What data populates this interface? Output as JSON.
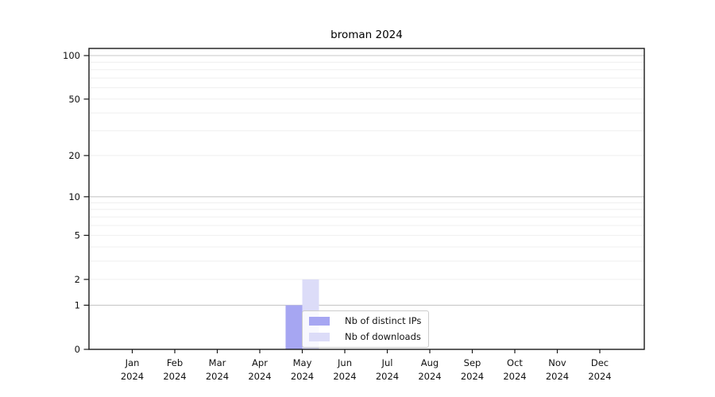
{
  "title": "broman 2024",
  "chart_data": {
    "type": "bar",
    "title": "broman 2024",
    "categories": [
      "Jan",
      "Feb",
      "Mar",
      "Apr",
      "May",
      "Jun",
      "Jul",
      "Aug",
      "Sep",
      "Oct",
      "Nov",
      "Dec"
    ],
    "category_year": "2024",
    "series": [
      {
        "name": "Nb of distinct IPs",
        "color": "#a6a6f2",
        "values": [
          0,
          0,
          0,
          0,
          1,
          0,
          0,
          0,
          0,
          0,
          0,
          0
        ]
      },
      {
        "name": "Nb of downloads",
        "color": "#dcdcf8",
        "values": [
          0,
          0,
          0,
          0,
          2,
          0,
          0,
          0,
          0,
          0,
          0,
          0
        ]
      }
    ],
    "y_axis": {
      "scale": "log1p",
      "ticks": [
        0,
        1,
        2,
        5,
        10,
        20,
        50,
        100
      ],
      "major_grid": [
        1,
        10,
        100
      ],
      "minor_grid": [
        2,
        3,
        4,
        5,
        6,
        7,
        8,
        9,
        20,
        30,
        40,
        50,
        60,
        70,
        80,
        90
      ],
      "max": 100
    },
    "ylim": [
      0,
      110
    ],
    "grid": true,
    "legend_position": "inside-bottom-center",
    "xlabel": "",
    "ylabel": ""
  },
  "colors": {
    "major_grid": "#c9c9c9",
    "minor_grid": "#efefef",
    "spine": "#1a1a1a",
    "text": "#111111",
    "legend_border": "#cccccc"
  }
}
